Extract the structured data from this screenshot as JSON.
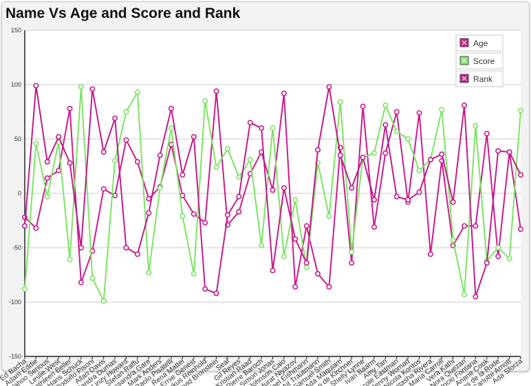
{
  "title": "Name Vs Age and Score and Rank",
  "chart_data": {
    "type": "line",
    "title": "Name Vs Age and Score and Rank",
    "ylim": [
      -150,
      150
    ],
    "yticks": [
      150,
      100,
      50,
      0,
      -50,
      -100,
      -150
    ],
    "grid": true,
    "legend_position": "top-right",
    "categories": [
      "Ed Bacha",
      "Adam Eddie",
      "Yahoo Serious",
      "Leslie West",
      "Kathleen Beller",
      "Hans Schuck",
      "Rodolfo Pisoni",
      "Allan Davis",
      "Sandra Dumas",
      "Linzy Howard",
      "Stefan Raffu",
      "Alessandra Gare",
      "Mark Anders",
      "Paolo Pisatelli",
      "Rena Mattei",
      "Ernie Genest",
      "Markus Reinhold",
      "David Bronstein",
      "Seal",
      "Gil Reyes",
      "Kristian Raad",
      "Pierre Baroch",
      "Simon Jonas",
      "Johnson Caio",
      "Murat Niyazov",
      "Rafael Eishmann",
      "Ait Trautmann",
      "Samuel Smith",
      "Ada Maquiam",
      "Ken de Kirchner",
      "Shelly Lynne",
      "Ivan Baarm",
      "Amy Tan",
      "Nicole Eastman",
      "Jenny Womad",
      "Nicola Kontos",
      "Natasha Rivera",
      "Maria Carroll",
      "Vera Kathi",
      "Nora Quezan",
      "Patricio Fontana",
      "Ariane Cook",
      "Jonas de la Rode",
      "Carlotte Arnott",
      "Ada Sforza"
    ],
    "series": [
      {
        "name": "Age",
        "color": "#cc1a8c",
        "values": [
          -22,
          -32,
          14,
          21,
          78,
          -82,
          -53,
          4,
          -2,
          49,
          29,
          -5,
          6,
          45,
          -2,
          -19,
          -27,
          94,
          -29,
          -17,
          18,
          38,
          3,
          92,
          -86,
          -30,
          -74,
          -86,
          42,
          -64,
          80,
          -31,
          37,
          75,
          -8,
          74,
          -56,
          30,
          -48,
          -30,
          -30,
          55,
          -58,
          38,
          -33
        ]
      },
      {
        "name": "Score",
        "color": "#7ce463",
        "values": [
          -88,
          46,
          -3,
          47,
          -61,
          98,
          -78,
          -99,
          30,
          75,
          93,
          -73,
          5,
          60,
          -21,
          -74,
          85,
          24,
          41,
          15,
          31,
          -48,
          60,
          -58,
          -6,
          -68,
          28,
          -21,
          84,
          -54,
          33,
          37,
          81,
          57,
          50,
          21,
          31,
          77,
          -43,
          -93,
          62,
          -62,
          -50,
          -60,
          76
        ]
      },
      {
        "name": "Rank",
        "color": "#bf1b8c",
        "values": [
          -30,
          99,
          29,
          52,
          28,
          -50,
          96,
          38,
          69,
          -50,
          -56,
          -18,
          35,
          78,
          17,
          52,
          -88,
          -92,
          -20,
          -3,
          65,
          60,
          -71,
          5,
          -42,
          -64,
          40,
          98,
          35,
          5,
          33,
          -6,
          63,
          -3,
          -6,
          1,
          31,
          36,
          -8,
          81,
          -95,
          -64,
          39,
          38,
          17
        ]
      }
    ]
  }
}
